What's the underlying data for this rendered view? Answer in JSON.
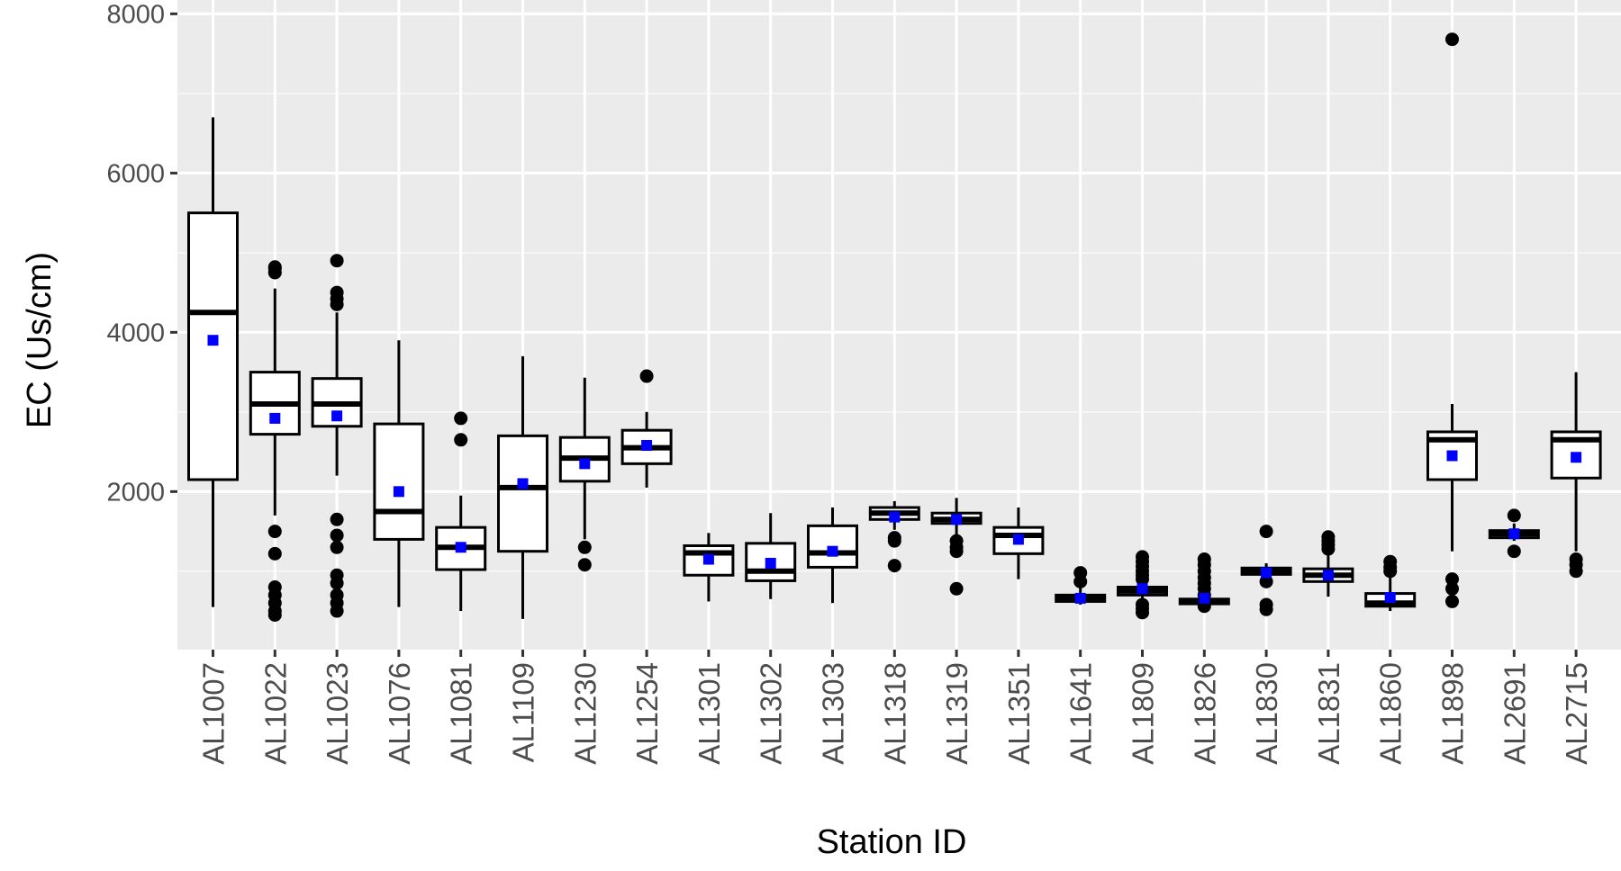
{
  "chart_data": {
    "type": "box",
    "xlabel": "Station ID",
    "ylabel": "EC (Us/cm)",
    "ylim": [
      50,
      8000
    ],
    "yticks": [
      2000,
      4000,
      6000,
      8000
    ],
    "grid": true,
    "colors": {
      "panel_bg": "#ebebeb",
      "grid_major": "#ffffff",
      "box_fill": "#ffffff",
      "box_line": "#000000",
      "mean_marker": "#0000ff",
      "outlier": "#000000"
    },
    "categories": [
      "AL1007",
      "AL1022",
      "AL1023",
      "AL1076",
      "AL1081",
      "AL1109",
      "AL1230",
      "AL1254",
      "AL1301",
      "AL1302",
      "AL1303",
      "AL1318",
      "AL1319",
      "AL1351",
      "AL1641",
      "AL1809",
      "AL1826",
      "AL1830",
      "AL1831",
      "AL1860",
      "AL1898",
      "AL2691",
      "AL2715"
    ],
    "boxes": [
      {
        "lower_whisker": 550,
        "q1": 2150,
        "median": 4250,
        "q3": 5500,
        "upper_whisker": 6700,
        "mean": 3900,
        "outliers": []
      },
      {
        "lower_whisker": 1700,
        "q1": 2720,
        "median": 3100,
        "q3": 3500,
        "upper_whisker": 4550,
        "mean": 2920,
        "outliers": [
          4750,
          4800,
          4820,
          1500,
          1220,
          800,
          700,
          600,
          500,
          450
        ]
      },
      {
        "lower_whisker": 2200,
        "q1": 2820,
        "median": 3100,
        "q3": 3420,
        "upper_whisker": 4250,
        "mean": 2950,
        "outliers": [
          4900,
          4500,
          4420,
          4350,
          1650,
          1450,
          1300,
          950,
          850,
          700,
          600,
          500
        ]
      },
      {
        "lower_whisker": 550,
        "q1": 1400,
        "median": 1750,
        "q3": 2850,
        "upper_whisker": 3900,
        "mean": 2000,
        "outliers": []
      },
      {
        "lower_whisker": 500,
        "q1": 1020,
        "median": 1300,
        "q3": 1550,
        "upper_whisker": 1950,
        "mean": 1300,
        "outliers": [
          2920,
          2650
        ]
      },
      {
        "lower_whisker": 400,
        "q1": 1250,
        "median": 2050,
        "q3": 2700,
        "upper_whisker": 3700,
        "mean": 2100,
        "outliers": []
      },
      {
        "lower_whisker": 1400,
        "q1": 2130,
        "median": 2420,
        "q3": 2680,
        "upper_whisker": 3430,
        "mean": 2350,
        "outliers": [
          1300,
          1080
        ]
      },
      {
        "lower_whisker": 2050,
        "q1": 2350,
        "median": 2550,
        "q3": 2770,
        "upper_whisker": 3000,
        "mean": 2580,
        "outliers": [
          3450
        ]
      },
      {
        "lower_whisker": 620,
        "q1": 950,
        "median": 1230,
        "q3": 1320,
        "upper_whisker": 1480,
        "mean": 1150,
        "outliers": []
      },
      {
        "lower_whisker": 650,
        "q1": 880,
        "median": 1000,
        "q3": 1350,
        "upper_whisker": 1730,
        "mean": 1100,
        "outliers": []
      },
      {
        "lower_whisker": 600,
        "q1": 1050,
        "median": 1230,
        "q3": 1570,
        "upper_whisker": 1800,
        "mean": 1250,
        "outliers": []
      },
      {
        "lower_whisker": 1520,
        "q1": 1650,
        "median": 1730,
        "q3": 1800,
        "upper_whisker": 1880,
        "mean": 1680,
        "outliers": [
          1420,
          1380,
          1070
        ]
      },
      {
        "lower_whisker": 1450,
        "q1": 1600,
        "median": 1650,
        "q3": 1730,
        "upper_whisker": 1920,
        "mean": 1650,
        "outliers": [
          1380,
          1300,
          1250,
          780
        ]
      },
      {
        "lower_whisker": 900,
        "q1": 1220,
        "median": 1450,
        "q3": 1550,
        "upper_whisker": 1800,
        "mean": 1400,
        "outliers": []
      },
      {
        "lower_whisker": 580,
        "q1": 620,
        "median": 660,
        "q3": 700,
        "upper_whisker": 790,
        "mean": 660,
        "outliers": [
          980,
          870
        ]
      },
      {
        "lower_whisker": 620,
        "q1": 700,
        "median": 750,
        "q3": 800,
        "upper_whisker": 880,
        "mean": 780,
        "outliers": [
          1180,
          1120,
          1060,
          1000,
          950,
          900,
          580,
          530,
          480
        ]
      },
      {
        "lower_whisker": 560,
        "q1": 590,
        "median": 620,
        "q3": 650,
        "upper_whisker": 700,
        "mean": 660,
        "outliers": [
          1150,
          1080,
          1000,
          920,
          850,
          780,
          700,
          600,
          560
        ]
      },
      {
        "lower_whisker": 900,
        "q1": 960,
        "median": 1000,
        "q3": 1040,
        "upper_whisker": 1100,
        "mean": 980,
        "outliers": [
          1500,
          870,
          580,
          520
        ]
      },
      {
        "lower_whisker": 680,
        "q1": 870,
        "median": 950,
        "q3": 1030,
        "upper_whisker": 1250,
        "mean": 950,
        "outliers": [
          1430,
          1380,
          1330,
          1280
        ]
      },
      {
        "lower_whisker": 500,
        "q1": 560,
        "median": 600,
        "q3": 720,
        "upper_whisker": 960,
        "mean": 670,
        "outliers": [
          1120,
          1050,
          1000
        ]
      },
      {
        "lower_whisker": 1250,
        "q1": 2150,
        "median": 2650,
        "q3": 2750,
        "upper_whisker": 3100,
        "mean": 2450,
        "outliers": [
          7680,
          900,
          780,
          620
        ]
      },
      {
        "lower_whisker": 1380,
        "q1": 1420,
        "median": 1470,
        "q3": 1510,
        "upper_whisker": 1600,
        "mean": 1470,
        "outliers": [
          1700,
          1250
        ]
      },
      {
        "lower_whisker": 1250,
        "q1": 2170,
        "median": 2650,
        "q3": 2750,
        "upper_whisker": 3500,
        "mean": 2430,
        "outliers": [
          1150,
          1080,
          1000
        ]
      }
    ]
  }
}
